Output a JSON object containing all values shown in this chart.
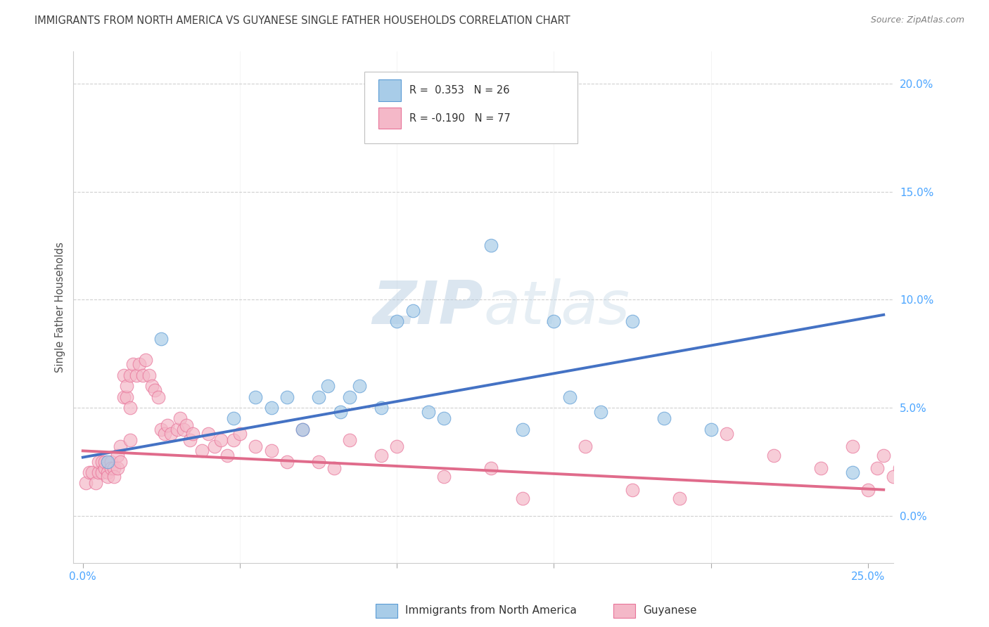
{
  "title": "IMMIGRANTS FROM NORTH AMERICA VS GUYANESE SINGLE FATHER HOUSEHOLDS CORRELATION CHART",
  "source": "Source: ZipAtlas.com",
  "ylabel": "Single Father Households",
  "xlim": [
    -0.003,
    0.258
  ],
  "ylim": [
    -0.022,
    0.215
  ],
  "xtick_positions": [
    0.0,
    0.05,
    0.1,
    0.15,
    0.2,
    0.25
  ],
  "xtick_labels": [
    "0.0%",
    "",
    "",
    "",
    "",
    "25.0%"
  ],
  "ytick_positions": [
    0.0,
    0.05,
    0.1,
    0.15,
    0.2
  ],
  "ytick_labels": [
    "0.0%",
    "5.0%",
    "10.0%",
    "15.0%",
    "20.0%"
  ],
  "blue_color": "#a8cce8",
  "blue_edge_color": "#5b9bd5",
  "pink_color": "#f4b8c8",
  "pink_edge_color": "#e87399",
  "blue_line_color": "#4472c4",
  "pink_line_color": "#e06b8b",
  "watermark_color": "#c8d8e8",
  "grid_color": "#d0d0d0",
  "title_color": "#404040",
  "source_color": "#808080",
  "axis_label_color": "#505050",
  "tick_color": "#4da6ff",
  "legend_border_color": "#c0c0c0",
  "blue_scatter_x": [
    0.008,
    0.025,
    0.048,
    0.055,
    0.06,
    0.065,
    0.07,
    0.075,
    0.078,
    0.082,
    0.085,
    0.088,
    0.095,
    0.1,
    0.105,
    0.11,
    0.115,
    0.14,
    0.15,
    0.155,
    0.165,
    0.175,
    0.2,
    0.185,
    0.13,
    0.245
  ],
  "blue_scatter_y": [
    0.025,
    0.082,
    0.045,
    0.055,
    0.05,
    0.055,
    0.04,
    0.055,
    0.06,
    0.048,
    0.055,
    0.06,
    0.05,
    0.09,
    0.095,
    0.048,
    0.045,
    0.04,
    0.09,
    0.055,
    0.048,
    0.09,
    0.04,
    0.045,
    0.125,
    0.02
  ],
  "pink_scatter_x": [
    0.001,
    0.002,
    0.003,
    0.004,
    0.005,
    0.005,
    0.006,
    0.006,
    0.007,
    0.007,
    0.008,
    0.008,
    0.009,
    0.009,
    0.01,
    0.01,
    0.011,
    0.011,
    0.012,
    0.012,
    0.013,
    0.013,
    0.014,
    0.014,
    0.015,
    0.015,
    0.016,
    0.017,
    0.018,
    0.019,
    0.02,
    0.021,
    0.022,
    0.023,
    0.024,
    0.025,
    0.026,
    0.027,
    0.028,
    0.03,
    0.031,
    0.032,
    0.033,
    0.034,
    0.035,
    0.038,
    0.04,
    0.042,
    0.044,
    0.046,
    0.048,
    0.05,
    0.055,
    0.06,
    0.065,
    0.07,
    0.075,
    0.08,
    0.085,
    0.095,
    0.1,
    0.115,
    0.13,
    0.14,
    0.16,
    0.175,
    0.19,
    0.205,
    0.22,
    0.235,
    0.245,
    0.25,
    0.253,
    0.255,
    0.258,
    0.26,
    0.015
  ],
  "pink_scatter_y": [
    0.015,
    0.02,
    0.02,
    0.015,
    0.02,
    0.025,
    0.025,
    0.02,
    0.022,
    0.025,
    0.02,
    0.018,
    0.025,
    0.022,
    0.022,
    0.018,
    0.028,
    0.022,
    0.025,
    0.032,
    0.055,
    0.065,
    0.055,
    0.06,
    0.065,
    0.05,
    0.07,
    0.065,
    0.07,
    0.065,
    0.072,
    0.065,
    0.06,
    0.058,
    0.055,
    0.04,
    0.038,
    0.042,
    0.038,
    0.04,
    0.045,
    0.04,
    0.042,
    0.035,
    0.038,
    0.03,
    0.038,
    0.032,
    0.035,
    0.028,
    0.035,
    0.038,
    0.032,
    0.03,
    0.025,
    0.04,
    0.025,
    0.022,
    0.035,
    0.028,
    0.032,
    0.018,
    0.022,
    0.008,
    0.032,
    0.012,
    0.008,
    0.038,
    0.028,
    0.022,
    0.032,
    0.012,
    0.022,
    0.028,
    0.018,
    0.022,
    0.035
  ],
  "blue_trendline_x": [
    0.0,
    0.255
  ],
  "blue_trendline_y": [
    0.027,
    0.093
  ],
  "pink_trendline_x": [
    0.0,
    0.255
  ],
  "pink_trendline_y": [
    0.03,
    0.012
  ],
  "legend_R1": "R =  0.353",
  "legend_N1": "N = 26",
  "legend_R2": "R = -0.190",
  "legend_N2": "N = 77",
  "legend_label1": "Immigrants from North America",
  "legend_label2": "Guyanese",
  "background_color": "#ffffff"
}
